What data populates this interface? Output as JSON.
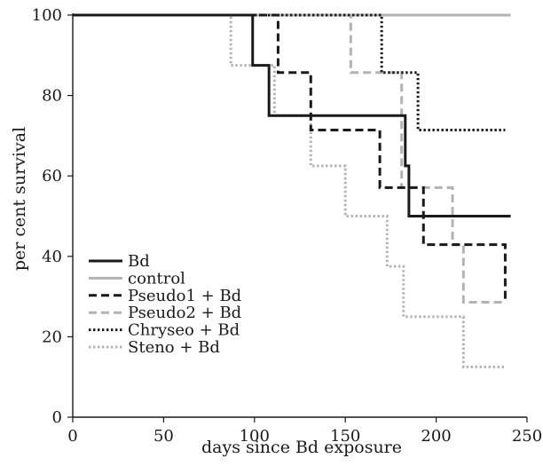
{
  "chart_data": {
    "type": "line",
    "title": "",
    "xlabel": "days since Bd exposure",
    "ylabel": "per cent survival",
    "xlim": [
      0,
      250
    ],
    "ylim": [
      0,
      100
    ],
    "xticks": [
      0,
      50,
      100,
      150,
      200,
      250
    ],
    "yticks": [
      0,
      20,
      40,
      60,
      80,
      100
    ],
    "grid": false,
    "legend_position": "bottom-left",
    "series": [
      {
        "name": "Bd",
        "color": "#1a1a1a",
        "dash": "solid",
        "points": [
          [
            0,
            100
          ],
          [
            99,
            100
          ],
          [
            99,
            87.5
          ],
          [
            108,
            87.5
          ],
          [
            108,
            75
          ],
          [
            183,
            75
          ],
          [
            183,
            62.5
          ],
          [
            185,
            62.5
          ],
          [
            185,
            50
          ],
          [
            241,
            50
          ]
        ]
      },
      {
        "name": "control",
        "color": "#b3b3b3",
        "dash": "solid",
        "points": [
          [
            0,
            100
          ],
          [
            241,
            100
          ]
        ]
      },
      {
        "name": "Pseudo1 + Bd",
        "color": "#1a1a1a",
        "dash": "dashed",
        "points": [
          [
            0,
            100
          ],
          [
            113,
            100
          ],
          [
            113,
            85.7
          ],
          [
            131,
            85.7
          ],
          [
            131,
            71.4
          ],
          [
            169,
            71.4
          ],
          [
            169,
            57.1
          ],
          [
            193,
            57.1
          ],
          [
            193,
            42.9
          ],
          [
            238,
            42.9
          ],
          [
            238,
            28.6
          ]
        ]
      },
      {
        "name": "Pseudo2 + Bd",
        "color": "#b3b3b3",
        "dash": "dashed",
        "points": [
          [
            0,
            100
          ],
          [
            153,
            100
          ],
          [
            153,
            85.7
          ],
          [
            181,
            85.7
          ],
          [
            181,
            57.1
          ],
          [
            209,
            57.1
          ],
          [
            209,
            42.9
          ],
          [
            215,
            42.9
          ],
          [
            215,
            28.6
          ],
          [
            238,
            28.6
          ]
        ]
      },
      {
        "name": "Chryseo + Bd",
        "color": "#1a1a1a",
        "dash": "dotted",
        "points": [
          [
            0,
            100
          ],
          [
            170,
            100
          ],
          [
            170,
            85.7
          ],
          [
            190,
            85.7
          ],
          [
            190,
            71.4
          ],
          [
            238,
            71.4
          ]
        ]
      },
      {
        "name": "Steno + Bd",
        "color": "#b3b3b3",
        "dash": "dotted",
        "points": [
          [
            0,
            100
          ],
          [
            87,
            100
          ],
          [
            87,
            87.5
          ],
          [
            111,
            87.5
          ],
          [
            111,
            75
          ],
          [
            131,
            75
          ],
          [
            131,
            62.5
          ],
          [
            150,
            62.5
          ],
          [
            150,
            50
          ],
          [
            173,
            50
          ],
          [
            173,
            37.5
          ],
          [
            182,
            37.5
          ],
          [
            182,
            25
          ],
          [
            215,
            25
          ],
          [
            215,
            12.5
          ],
          [
            238,
            12.5
          ]
        ]
      }
    ]
  }
}
